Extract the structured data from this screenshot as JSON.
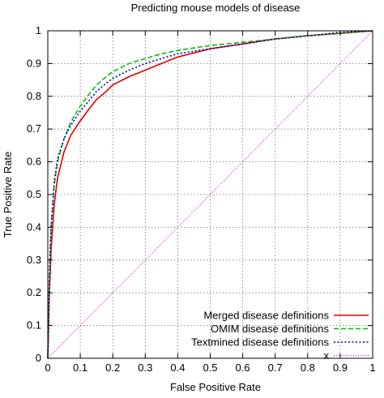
{
  "chart_data": {
    "type": "line",
    "title": "Predicting mouse models of disease",
    "xlabel": "False Positive Rate",
    "ylabel": "True Positive Rate",
    "xlim": [
      0,
      1
    ],
    "ylim": [
      0,
      1
    ],
    "xticks": [
      "0",
      "0.1",
      "0.2",
      "0.3",
      "0.4",
      "0.5",
      "0.6",
      "0.7",
      "0.8",
      "0.9",
      "1"
    ],
    "yticks": [
      "0",
      "0.1",
      "0.2",
      "0.3",
      "0.4",
      "0.5",
      "0.6",
      "0.7",
      "0.8",
      "0.9",
      "1"
    ],
    "grid": true,
    "legend_position": "bottom-right",
    "series": [
      {
        "name": "Merged disease definitions",
        "color": "#e00000",
        "dash": "solid",
        "x": [
          0,
          0.005,
          0.01,
          0.02,
          0.03,
          0.05,
          0.07,
          0.1,
          0.13,
          0.15,
          0.18,
          0.2,
          0.25,
          0.3,
          0.35,
          0.4,
          0.5,
          0.6,
          0.7,
          0.8,
          0.9,
          1.0
        ],
        "y": [
          0,
          0.2,
          0.33,
          0.47,
          0.55,
          0.63,
          0.68,
          0.725,
          0.765,
          0.79,
          0.815,
          0.835,
          0.86,
          0.88,
          0.9,
          0.92,
          0.945,
          0.96,
          0.975,
          0.985,
          0.992,
          1.0
        ]
      },
      {
        "name": "OMIM disease definitions",
        "color": "#00c000",
        "dash": "dashed",
        "x": [
          0,
          0.005,
          0.01,
          0.02,
          0.03,
          0.05,
          0.07,
          0.1,
          0.13,
          0.15,
          0.18,
          0.2,
          0.25,
          0.3,
          0.35,
          0.4,
          0.5,
          0.6,
          0.7,
          0.8,
          0.9,
          1.0
        ],
        "y": [
          0,
          0.25,
          0.4,
          0.53,
          0.6,
          0.67,
          0.72,
          0.77,
          0.81,
          0.835,
          0.86,
          0.875,
          0.9,
          0.915,
          0.93,
          0.94,
          0.955,
          0.965,
          0.975,
          0.985,
          0.993,
          1.0
        ]
      },
      {
        "name": "Textmined disease definitions",
        "color": "#0000c0",
        "dash": "dotted",
        "x": [
          0,
          0.005,
          0.01,
          0.02,
          0.03,
          0.05,
          0.07,
          0.1,
          0.13,
          0.15,
          0.18,
          0.2,
          0.25,
          0.3,
          0.35,
          0.4,
          0.5,
          0.6,
          0.7,
          0.8,
          0.9,
          1.0
        ],
        "y": [
          0,
          0.25,
          0.4,
          0.54,
          0.61,
          0.67,
          0.71,
          0.755,
          0.79,
          0.815,
          0.84,
          0.855,
          0.88,
          0.9,
          0.915,
          0.93,
          0.945,
          0.96,
          0.975,
          0.985,
          0.995,
          1.0
        ]
      },
      {
        "name": "x",
        "color": "#e000e0",
        "dash": "fine-dotted",
        "x": [
          0,
          1
        ],
        "y": [
          0,
          1
        ]
      }
    ]
  }
}
